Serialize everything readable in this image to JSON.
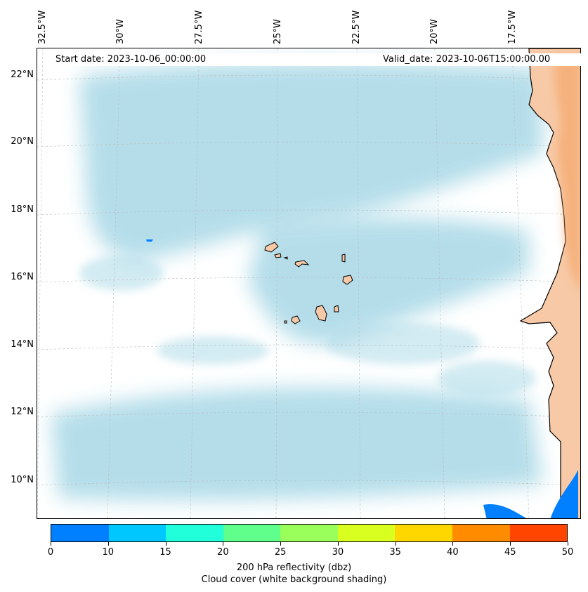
{
  "map": {
    "start_date": "Start date: 2023-10-06_00:00:00",
    "valid_date": "Valid_date: 2023-10-06T15:00:00.00",
    "longitude_labels": [
      "32.5°W",
      "30°W",
      "27.5°W",
      "25°W",
      "22.5°W",
      "20°W",
      "17.5°W"
    ],
    "latitude_labels": [
      "22°N",
      "20°N",
      "18°N",
      "16°N",
      "14°N",
      "12°N",
      "10°N"
    ],
    "colors": {
      "land": "#f7c9a6",
      "land_dark": "#f4a262",
      "cloud": "#a8d8e6",
      "reflectivity_low": "#0080ff"
    }
  },
  "colorbar": {
    "ticks": [
      "0",
      "10",
      "15",
      "20",
      "25",
      "30",
      "35",
      "40",
      "45",
      "50"
    ],
    "colors": [
      "#0080ff",
      "#00c8ff",
      "#20ffd9",
      "#60ff8c",
      "#9aff5a",
      "#d8ff20",
      "#ffd700",
      "#ff8c00",
      "#ff4500"
    ],
    "label_line1": "200 hPa reflectivity (dbz)",
    "label_line2": "Cloud cover (white background shading)"
  }
}
